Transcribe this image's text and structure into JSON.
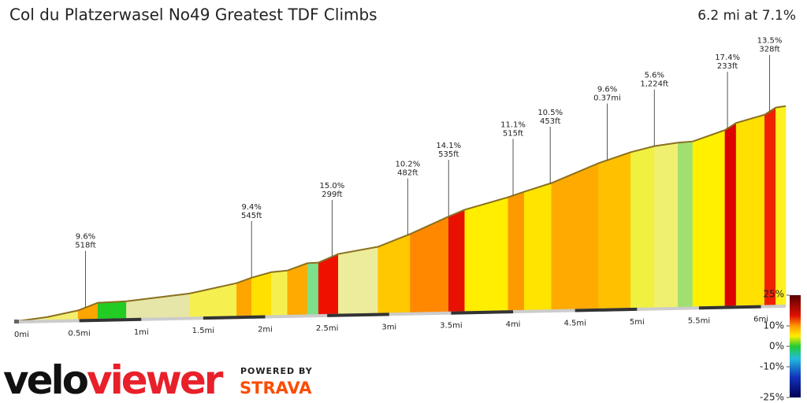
{
  "chart_data": {
    "type": "profile",
    "title": "Col du Platzerwasel No49 Greatest TDF Climbs",
    "subtitle": "6.2 mi at 7.1%",
    "x": [
      0,
      0.24,
      0.49,
      0.65,
      0.88,
      1.39,
      1.77,
      1.89,
      2.05,
      2.18,
      2.34,
      2.43,
      2.59,
      2.91,
      3.17,
      3.48,
      3.61,
      3.96,
      4.09,
      4.31,
      4.69,
      4.95,
      5.14,
      5.33,
      5.45,
      5.71,
      5.8,
      6.03,
      6.12,
      6.2
    ],
    "values": [
      0,
      40,
      110,
      195,
      205,
      280,
      390,
      450,
      510,
      525,
      605,
      610,
      705,
      780,
      920,
      1115,
      1190,
      1325,
      1385,
      1480,
      1700,
      1820,
      1885,
      1920,
      1930,
      2055,
      2135,
      2225,
      2305,
      2320
    ],
    "colors": [
      "#eeeea6",
      "#f3ee70",
      "#ffa500",
      "#22cc22",
      "#e6e6a8",
      "#f5f050",
      "#ffa500",
      "#ffe000",
      "#f5f050",
      "#ffaa00",
      "#7de08a",
      "#ee1100",
      "#ecec9a",
      "#ffc800",
      "#ff8800",
      "#e81000",
      "#ffee00",
      "#ff9900",
      "#ffe400",
      "#ffaa00",
      "#ffc000",
      "#f0f040",
      "#f0f070",
      "#a0e070",
      "#fff000",
      "#dd0000",
      "#ffe000",
      "#ee2200",
      "#fff020"
    ],
    "xlim": [
      0,
      6.2
    ],
    "ylim": [
      0,
      2400
    ],
    "xticks": [
      {
        "value": 0,
        "label": "0mi"
      },
      {
        "value": 0.5,
        "label": "0.5mi"
      },
      {
        "value": 1,
        "label": "1mi"
      },
      {
        "value": 1.5,
        "label": "1.5mi"
      },
      {
        "value": 2,
        "label": "2mi"
      },
      {
        "value": 2.5,
        "label": "2.5mi"
      },
      {
        "value": 3,
        "label": "3mi"
      },
      {
        "value": 3.5,
        "label": "3.5mi"
      },
      {
        "value": 4,
        "label": "4mi"
      },
      {
        "value": 4.5,
        "label": "4.5mi"
      },
      {
        "value": 5,
        "label": "5mi"
      },
      {
        "value": 5.5,
        "label": "5.5mi"
      },
      {
        "value": 6,
        "label": "6mi"
      }
    ],
    "annotations": [
      {
        "x": 0.55,
        "grade": "9.6%",
        "length": "518ft"
      },
      {
        "x": 1.89,
        "grade": "9.4%",
        "length": "545ft"
      },
      {
        "x": 2.54,
        "grade": "15.0%",
        "length": "299ft"
      },
      {
        "x": 3.15,
        "grade": "10.2%",
        "length": "482ft"
      },
      {
        "x": 3.48,
        "grade": "14.1%",
        "length": "535ft"
      },
      {
        "x": 4.0,
        "grade": "11.1%",
        "length": "515ft"
      },
      {
        "x": 4.3,
        "grade": "10.5%",
        "length": "453ft"
      },
      {
        "x": 4.76,
        "grade": "9.6%",
        "length": "0.37mi"
      },
      {
        "x": 5.14,
        "grade": "5.6%",
        "length": "1,224ft"
      },
      {
        "x": 5.73,
        "grade": "17.4%",
        "length": "233ft"
      },
      {
        "x": 6.07,
        "grade": "13.5%",
        "length": "328ft"
      }
    ],
    "colorbar": {
      "lim": [
        -25,
        25
      ],
      "ticks": [
        {
          "value": 25,
          "label": "25%"
        },
        {
          "value": 10,
          "label": "10%"
        },
        {
          "value": 0,
          "label": "0%"
        },
        {
          "value": -10,
          "label": "-10%"
        },
        {
          "value": -25,
          "label": "-25%"
        }
      ]
    }
  },
  "branding": {
    "velo": "velo",
    "viewer": "viewer",
    "powered": "POWERED BY",
    "strava": "STRAVA"
  }
}
